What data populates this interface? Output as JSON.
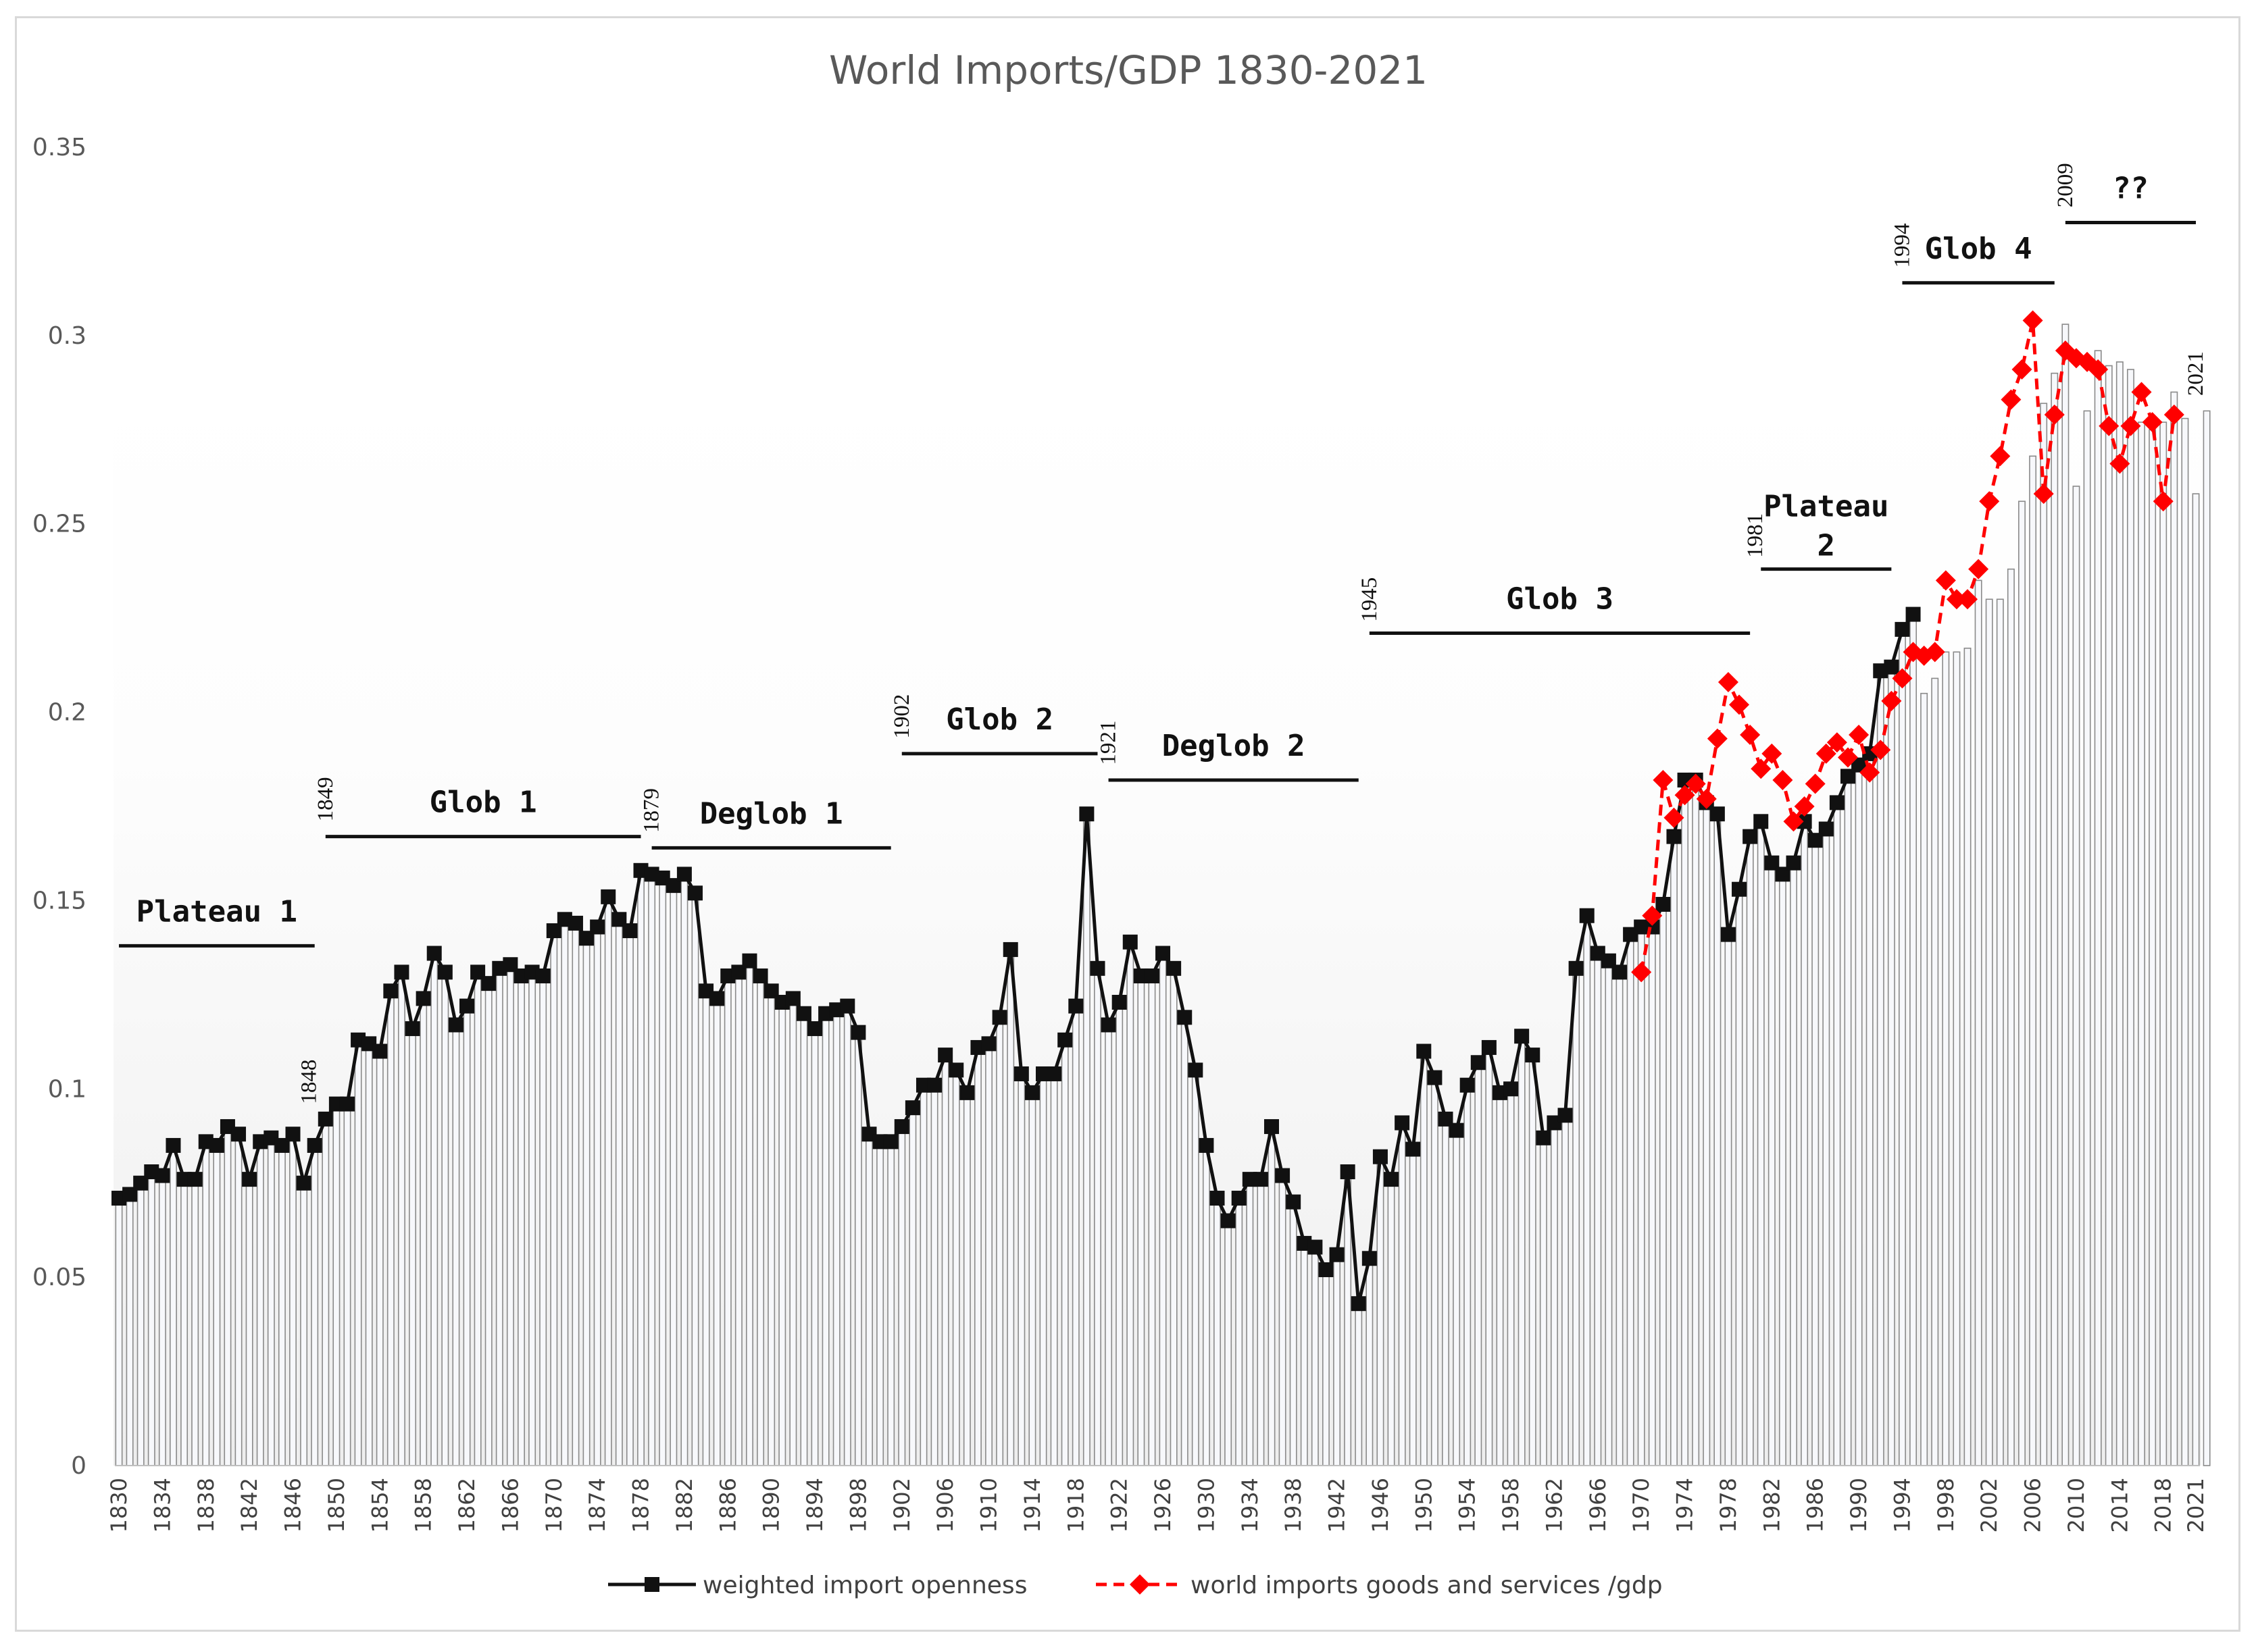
{
  "chart_data": {
    "type": "line",
    "title": "World Imports/GDP 1830-2021",
    "xlabel": "",
    "ylabel": "",
    "xlim": [
      1830,
      2021
    ],
    "ylim": [
      0,
      0.35
    ],
    "yticks": [
      "0",
      "0.05",
      "0.1",
      "0.15",
      "0.2",
      "0.25",
      "0.3",
      "0.35"
    ],
    "ytick_values": [
      0,
      0.05,
      0.1,
      0.15,
      0.2,
      0.25,
      0.3,
      0.35
    ],
    "xticks": [
      "1830",
      "1834",
      "1838",
      "1842",
      "1846",
      "1850",
      "1854",
      "1858",
      "1862",
      "1866",
      "1870",
      "1874",
      "1878",
      "1882",
      "1886",
      "1890",
      "1894",
      "1898",
      "1902",
      "1906",
      "1910",
      "1914",
      "1918",
      "1922",
      "1926",
      "1930",
      "1934",
      "1938",
      "1942",
      "1946",
      "1950",
      "1954",
      "1958",
      "1962",
      "1966",
      "1970",
      "1974",
      "1978",
      "1982",
      "1986",
      "1990",
      "1994",
      "1998",
      "2002",
      "2006",
      "2010",
      "2014",
      "2018",
      "2021"
    ],
    "xtick_values": [
      1830,
      1834,
      1838,
      1842,
      1846,
      1850,
      1854,
      1858,
      1862,
      1866,
      1870,
      1874,
      1878,
      1882,
      1886,
      1890,
      1894,
      1898,
      1902,
      1906,
      1910,
      1914,
      1918,
      1922,
      1926,
      1930,
      1934,
      1938,
      1942,
      1946,
      1950,
      1954,
      1958,
      1962,
      1966,
      1970,
      1974,
      1978,
      1982,
      1986,
      1990,
      1994,
      1998,
      2002,
      2006,
      2010,
      2014,
      2018,
      2021
    ],
    "bar_values": [
      0.071,
      0.072,
      0.075,
      0.078,
      0.077,
      0.085,
      0.076,
      0.076,
      0.086,
      0.085,
      0.09,
      0.088,
      0.076,
      0.086,
      0.087,
      0.085,
      0.088,
      0.075,
      0.085,
      0.092,
      0.096,
      0.096,
      0.113,
      0.112,
      0.11,
      0.126,
      0.131,
      0.116,
      0.124,
      0.136,
      0.131,
      0.117,
      0.122,
      0.131,
      0.128,
      0.132,
      0.133,
      0.13,
      0.131,
      0.13,
      0.142,
      0.145,
      0.144,
      0.14,
      0.143,
      0.151,
      0.145,
      0.142,
      0.158,
      0.157,
      0.156,
      0.154,
      0.157,
      0.152,
      0.126,
      0.124,
      0.13,
      0.131,
      0.134,
      0.13,
      0.126,
      0.123,
      0.124,
      0.12,
      0.116,
      0.12,
      0.121,
      0.122,
      0.115,
      0.088,
      0.086,
      0.086,
      0.09,
      0.095,
      0.101,
      0.101,
      0.109,
      0.105,
      0.099,
      0.111,
      0.112,
      0.119,
      0.137,
      0.104,
      0.099,
      0.104,
      0.104,
      0.113,
      0.122,
      0.173,
      0.132,
      0.117,
      0.123,
      0.139,
      0.13,
      0.13,
      0.136,
      0.132,
      0.119,
      0.105,
      0.085,
      0.071,
      0.065,
      0.071,
      0.076,
      0.076,
      0.09,
      0.077,
      0.07,
      0.059,
      0.058,
      0.052,
      0.056,
      0.078,
      0.043,
      0.055,
      0.082,
      0.076,
      0.091,
      0.084,
      0.11,
      0.103,
      0.092,
      0.089,
      0.101,
      0.107,
      0.111,
      0.099,
      0.1,
      0.114,
      0.109,
      0.087,
      0.091,
      0.093,
      0.132,
      0.146,
      0.136,
      0.134,
      0.131,
      0.141,
      0.143,
      0.143,
      0.149,
      0.167,
      0.182,
      0.182,
      0.176,
      0.173,
      0.141,
      0.153,
      0.167,
      0.171,
      0.16,
      0.157,
      0.16,
      0.171,
      0.166,
      0.169,
      0.176,
      0.183,
      0.186,
      0.189,
      0.211,
      0.212,
      0.222,
      0.226,
      0.205,
      0.209,
      0.216,
      0.216,
      0.217,
      0.235,
      0.23,
      0.23,
      0.238,
      0.256,
      0.268,
      0.282,
      0.29,
      0.303,
      0.26,
      0.28,
      0.296,
      0.292,
      0.293,
      0.291,
      0.277,
      0.275,
      0.277,
      0.285,
      0.278,
      0.258,
      0.28
    ],
    "series": [
      {
        "name": "weighted import openness",
        "color": "#111111",
        "marker": "square",
        "x_start": 1830,
        "values": [
          0.071,
          0.072,
          0.075,
          0.078,
          0.077,
          0.085,
          0.076,
          0.076,
          0.086,
          0.085,
          0.09,
          0.088,
          0.076,
          0.086,
          0.087,
          0.085,
          0.088,
          0.075,
          0.085,
          0.092,
          0.096,
          0.096,
          0.113,
          0.112,
          0.11,
          0.126,
          0.131,
          0.116,
          0.124,
          0.136,
          0.131,
          0.117,
          0.122,
          0.131,
          0.128,
          0.132,
          0.133,
          0.13,
          0.131,
          0.13,
          0.142,
          0.145,
          0.144,
          0.14,
          0.143,
          0.151,
          0.145,
          0.142,
          0.158,
          0.157,
          0.156,
          0.154,
          0.157,
          0.152,
          0.126,
          0.124,
          0.13,
          0.131,
          0.134,
          0.13,
          0.126,
          0.123,
          0.124,
          0.12,
          0.116,
          0.12,
          0.121,
          0.122,
          0.115,
          0.088,
          0.086,
          0.086,
          0.09,
          0.095,
          0.101,
          0.101,
          0.109,
          0.105,
          0.099,
          0.111,
          0.112,
          0.119,
          0.137,
          0.104,
          0.099,
          0.104,
          0.104,
          0.113,
          0.122,
          0.173,
          0.132,
          0.117,
          0.123,
          0.139,
          0.13,
          0.13,
          0.136,
          0.132,
          0.119,
          0.105,
          0.085,
          0.071,
          0.065,
          0.071,
          0.076,
          0.076,
          0.09,
          0.077,
          0.07,
          0.059,
          0.058,
          0.052,
          0.056,
          0.078,
          0.043,
          0.055,
          0.082,
          0.076,
          0.091,
          0.084,
          0.11,
          0.103,
          0.092,
          0.089,
          0.101,
          0.107,
          0.111,
          0.099,
          0.1,
          0.114,
          0.109,
          0.087,
          0.091,
          0.093,
          0.132,
          0.146,
          0.136,
          0.134,
          0.131,
          0.141,
          0.143,
          0.143,
          0.149,
          0.167,
          0.182,
          0.182,
          0.176,
          0.173,
          0.141,
          0.153,
          0.167,
          0.171,
          0.16,
          0.157,
          0.16,
          0.171,
          0.166,
          0.169,
          0.176,
          0.183,
          0.186,
          0.189,
          0.211,
          0.212,
          0.222,
          0.226
        ]
      },
      {
        "name": "world imports goods and services /gdp",
        "color": "#ff0000",
        "marker": "diamond",
        "x_start": 1970,
        "values": [
          0.131,
          0.146,
          0.182,
          0.172,
          0.178,
          0.181,
          0.177,
          0.193,
          0.208,
          0.202,
          0.194,
          0.185,
          0.189,
          0.182,
          0.171,
          0.175,
          0.181,
          0.189,
          0.192,
          0.188,
          0.194,
          0.184,
          0.19,
          0.203,
          0.209,
          0.216,
          0.215,
          0.216,
          0.235,
          0.23,
          0.23,
          0.238,
          0.256,
          0.268,
          0.283,
          0.291,
          0.304,
          0.258,
          0.279,
          0.296,
          0.294,
          0.293,
          0.291,
          0.276,
          0.266,
          0.276,
          0.285,
          0.277,
          0.256,
          0.279
        ]
      }
    ],
    "legend_position": "bottom",
    "annotations": [
      {
        "label": "Plateau 1",
        "start_year": 1830,
        "end_year": 1848,
        "y": 0.138
      },
      {
        "label": "Glob 1",
        "start_year": 1849,
        "end_year": 1878,
        "y": 0.167
      },
      {
        "label": "Deglob 1",
        "start_year": 1879,
        "end_year": 1901,
        "y": 0.164
      },
      {
        "label": "Glob 2",
        "start_year": 1902,
        "end_year": 1920,
        "y": 0.189
      },
      {
        "label": "Deglob 2",
        "start_year": 1921,
        "end_year": 1944,
        "y": 0.182
      },
      {
        "label": "Glob 3",
        "start_year": 1945,
        "end_year": 1980,
        "y": 0.221
      },
      {
        "label": "Plateau",
        "label2": "2",
        "start_year": 1981,
        "end_year": 1993,
        "y": 0.238
      },
      {
        "label": "Glob 4",
        "start_year": 1994,
        "end_year": 2008,
        "y": 0.314
      },
      {
        "label": "??",
        "start_year": 2009,
        "end_year": 2021,
        "y": 0.33
      }
    ],
    "year_notes": [
      {
        "text": "1848",
        "year": 1847.5,
        "y": 0.096
      },
      {
        "text": "1849",
        "year": 1849,
        "y": 0.171
      },
      {
        "text": "1879",
        "year": 1879,
        "y": 0.168
      },
      {
        "text": "1902",
        "year": 1902,
        "y": 0.193
      },
      {
        "text": "1921",
        "year": 1921,
        "y": 0.186
      },
      {
        "text": "1945",
        "year": 1945,
        "y": 0.224
      },
      {
        "text": "1981",
        "year": 1980.5,
        "y": 0.241
      },
      {
        "text": "1994",
        "year": 1994,
        "y": 0.318
      },
      {
        "text": "2009",
        "year": 2009,
        "y": 0.334
      },
      {
        "text": "2021",
        "year": 2021,
        "y": 0.284
      }
    ]
  }
}
